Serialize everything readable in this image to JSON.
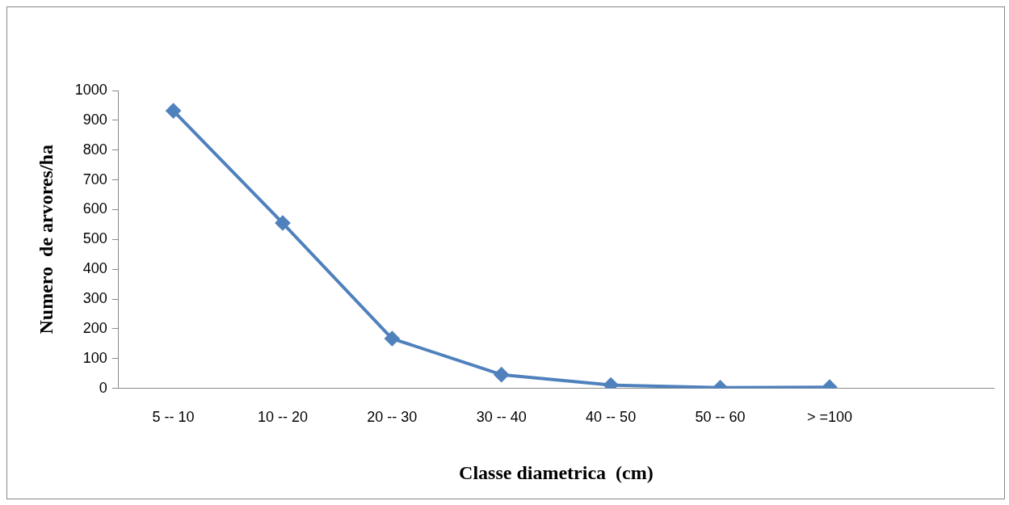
{
  "chart_data": {
    "type": "line",
    "xlabel": "Classe diametrica  (cm)",
    "ylabel": "Numero  de arvores/ha",
    "categories": [
      "5 -- 10",
      "10 -- 20",
      "20 -- 30",
      "30 -- 40",
      "40 -- 50",
      "50 -- 60",
      "> =100",
      null
    ],
    "series": [
      {
        "color": "#4f81bd",
        "values": [
          932,
          555,
          167,
          46,
          11,
          2,
          4,
          null
        ]
      }
    ],
    "ylim": [
      0,
      1000
    ],
    "yticks": [
      0,
      100,
      200,
      300,
      400,
      500,
      600,
      700,
      800,
      900,
      1000
    ],
    "grid": false,
    "legend": false,
    "marker": "diamond",
    "line_style": "solid"
  }
}
